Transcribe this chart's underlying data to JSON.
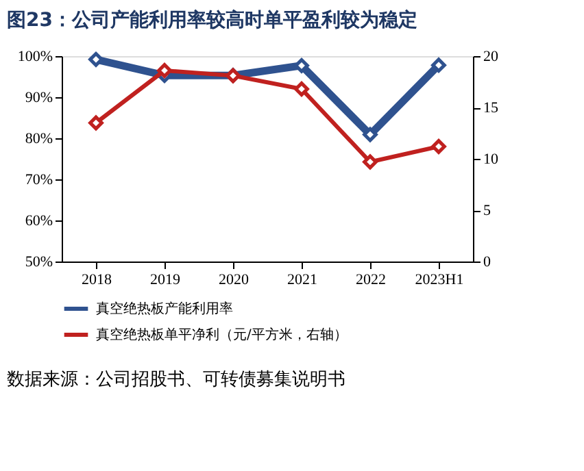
{
  "chart_data": {
    "type": "line",
    "title": "图23：公司产能利用率较高时单平盈利较为稳定",
    "categories": [
      "2018",
      "2019",
      "2020",
      "2021",
      "2022",
      "2023H1"
    ],
    "series": [
      {
        "name": "真空绝热板产能利用率",
        "color": "#2f528f",
        "values": [
          99.2,
          95.3,
          95.3,
          97.7,
          80.9,
          97.8
        ]
      },
      {
        "name": "真空绝热板单平净利（元/平方米，右轴）",
        "color": "#c0211f",
        "axis": "y2",
        "values": [
          13.5,
          18.6,
          18.1,
          16.8,
          9.7,
          11.2
        ]
      }
    ],
    "ylim": [
      50,
      100
    ],
    "yticks": [
      {
        "value": 50,
        "label": "50%"
      },
      {
        "value": 60,
        "label": "60%"
      },
      {
        "value": 70,
        "label": "70%"
      },
      {
        "value": 80,
        "label": "80%"
      },
      {
        "value": 90,
        "label": "90%"
      },
      {
        "value": 100,
        "label": "100%"
      }
    ],
    "y2lim": [
      0,
      20
    ],
    "y2ticks": [
      0,
      5,
      10,
      15,
      20
    ],
    "marker": "diamond",
    "grid": false,
    "legend": "bottom",
    "annotations": [
      "数据来源：公司招股书、可转债募集说明书"
    ]
  }
}
